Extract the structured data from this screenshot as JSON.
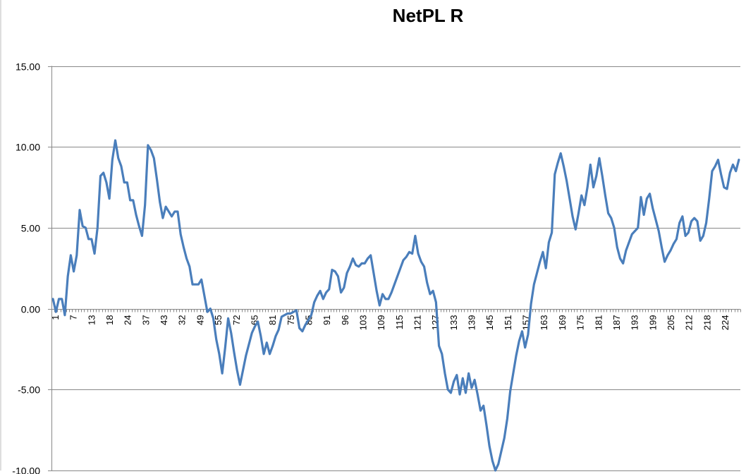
{
  "chart_data": {
    "type": "line",
    "title": "NetPL R",
    "xlabel": "",
    "ylabel": "",
    "ylim": [
      -10,
      15
    ],
    "y_ticks": [
      "15.00",
      "10.00",
      "5.00",
      "0.00",
      "-5.00",
      "-10.00"
    ],
    "y_tick_values": [
      15,
      10,
      5,
      0,
      -5,
      -10
    ],
    "grid": true,
    "legend": "none",
    "line_color": "#4a7ebb",
    "x_tick_labels": [
      "1",
      "7",
      "13",
      "18",
      "24",
      "37",
      "43",
      "32",
      "49",
      "55",
      "72",
      "65",
      "81",
      "75",
      "85",
      "91",
      "96",
      "103",
      "109",
      "115",
      "121",
      "127",
      "133",
      "139",
      "145",
      "151",
      "157",
      "163",
      "169",
      "175",
      "181",
      "187",
      "193",
      "199",
      "205",
      "212",
      "218",
      "224"
    ],
    "series": [
      {
        "values": [
          0.6,
          -0.2,
          0.6,
          0.6,
          -0.4,
          2.0,
          3.3,
          2.3,
          3.3,
          6.1,
          5.1,
          5.0,
          4.3,
          4.3,
          3.4,
          5.0,
          8.2,
          8.4,
          7.8,
          6.8,
          9.2,
          10.4,
          9.3,
          8.8,
          7.8,
          7.8,
          6.7,
          6.7,
          5.8,
          5.1,
          4.5,
          6.4,
          10.1,
          9.8,
          9.3,
          8.0,
          6.6,
          5.6,
          6.3,
          6.0,
          5.7,
          6.0,
          6.0,
          4.6,
          3.8,
          3.1,
          2.6,
          1.5,
          1.5,
          1.5,
          1.8,
          0.8,
          -0.2,
          0.0,
          -0.6,
          -1.9,
          -2.8,
          -4.0,
          -2.4,
          -0.6,
          -1.5,
          -2.7,
          -3.8,
          -4.7,
          -3.8,
          -2.9,
          -2.2,
          -1.5,
          -1.1,
          -0.8,
          -1.7,
          -2.8,
          -2.1,
          -2.8,
          -2.3,
          -1.7,
          -1.3,
          -0.5,
          -0.4,
          -0.3,
          -0.3,
          -0.2,
          -0.1,
          -1.2,
          -1.4,
          -1.0,
          -0.7,
          -0.4,
          0.4,
          0.8,
          1.1,
          0.6,
          1.0,
          1.2,
          2.4,
          2.3,
          2.0,
          1.0,
          1.3,
          2.2,
          2.6,
          3.1,
          2.7,
          2.6,
          2.8,
          2.8,
          3.1,
          3.3,
          2.2,
          1.1,
          0.2,
          0.9,
          0.6,
          0.6,
          1.0,
          1.5,
          2.0,
          2.5,
          3.0,
          3.2,
          3.5,
          3.4,
          4.5,
          3.4,
          2.9,
          2.6,
          1.6,
          0.9,
          1.1,
          0.4,
          -2.3,
          -2.8,
          -4.0,
          -5.0,
          -5.2,
          -4.5,
          -4.1,
          -5.3,
          -4.3,
          -5.2,
          -4.0,
          -4.9,
          -4.4,
          -5.3,
          -6.3,
          -6.0,
          -7.2,
          -8.5,
          -9.4,
          -10.0,
          -9.6,
          -8.8,
          -8.0,
          -6.8,
          -5.1,
          -4.0,
          -2.9,
          -2.0,
          -1.4,
          -2.4,
          -1.6,
          0.3,
          1.5,
          2.2,
          2.9,
          3.5,
          2.5,
          4.1,
          4.7,
          8.3,
          9.0,
          9.6,
          8.8,
          7.9,
          6.8,
          5.7,
          4.9,
          5.9,
          7.0,
          6.4,
          7.5,
          8.9,
          7.5,
          8.2,
          9.3,
          8.2,
          7.0,
          5.9,
          5.6,
          5.0,
          3.8,
          3.1,
          2.8,
          3.6,
          4.1,
          4.6,
          4.8,
          5.0,
          6.9,
          5.8,
          6.8,
          7.1,
          6.2,
          5.5,
          4.8,
          3.8,
          2.9,
          3.3,
          3.6,
          4.0,
          4.3,
          5.3,
          5.7,
          4.5,
          4.7,
          5.4,
          5.6,
          5.4,
          4.2,
          4.5,
          5.3,
          6.8,
          8.5,
          8.8,
          9.2,
          8.3,
          7.5,
          7.4,
          8.4,
          8.9,
          8.5,
          9.2
        ]
      }
    ]
  }
}
